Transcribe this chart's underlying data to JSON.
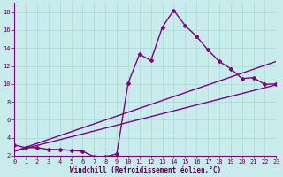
{
  "xlabel": "Windchill (Refroidissement éolien,°C)",
  "background_color": "#c8ecec",
  "grid_color": "#aad8d8",
  "line_color": "#800080",
  "x_min": 0,
  "x_max": 23,
  "y_min": 2,
  "y_max": 19,
  "y_ticks": [
    2,
    4,
    6,
    8,
    10,
    12,
    14,
    16,
    18
  ],
  "x_ticks": [
    0,
    1,
    2,
    3,
    4,
    5,
    6,
    7,
    8,
    9,
    10,
    11,
    12,
    13,
    14,
    15,
    16,
    17,
    18,
    19,
    20,
    21,
    22,
    23
  ],
  "series1_x": [
    0,
    1,
    2,
    3,
    4,
    5,
    6,
    7,
    8,
    9,
    10,
    11,
    12,
    13,
    14,
    15,
    16,
    17,
    18,
    19,
    20,
    21,
    22,
    23
  ],
  "series1_y": [
    3.2,
    2.9,
    2.9,
    2.7,
    2.7,
    2.6,
    2.5,
    1.9,
    1.9,
    2.2,
    10.1,
    13.3,
    12.6,
    16.3,
    18.2,
    16.5,
    15.3,
    13.8,
    12.5,
    11.7,
    10.6,
    10.7,
    9.95,
    10.0
  ],
  "series2_x": [
    0,
    23
  ],
  "series2_y": [
    2.5,
    12.5
  ],
  "series3_x": [
    0,
    23
  ],
  "series3_y": [
    2.5,
    9.9
  ]
}
